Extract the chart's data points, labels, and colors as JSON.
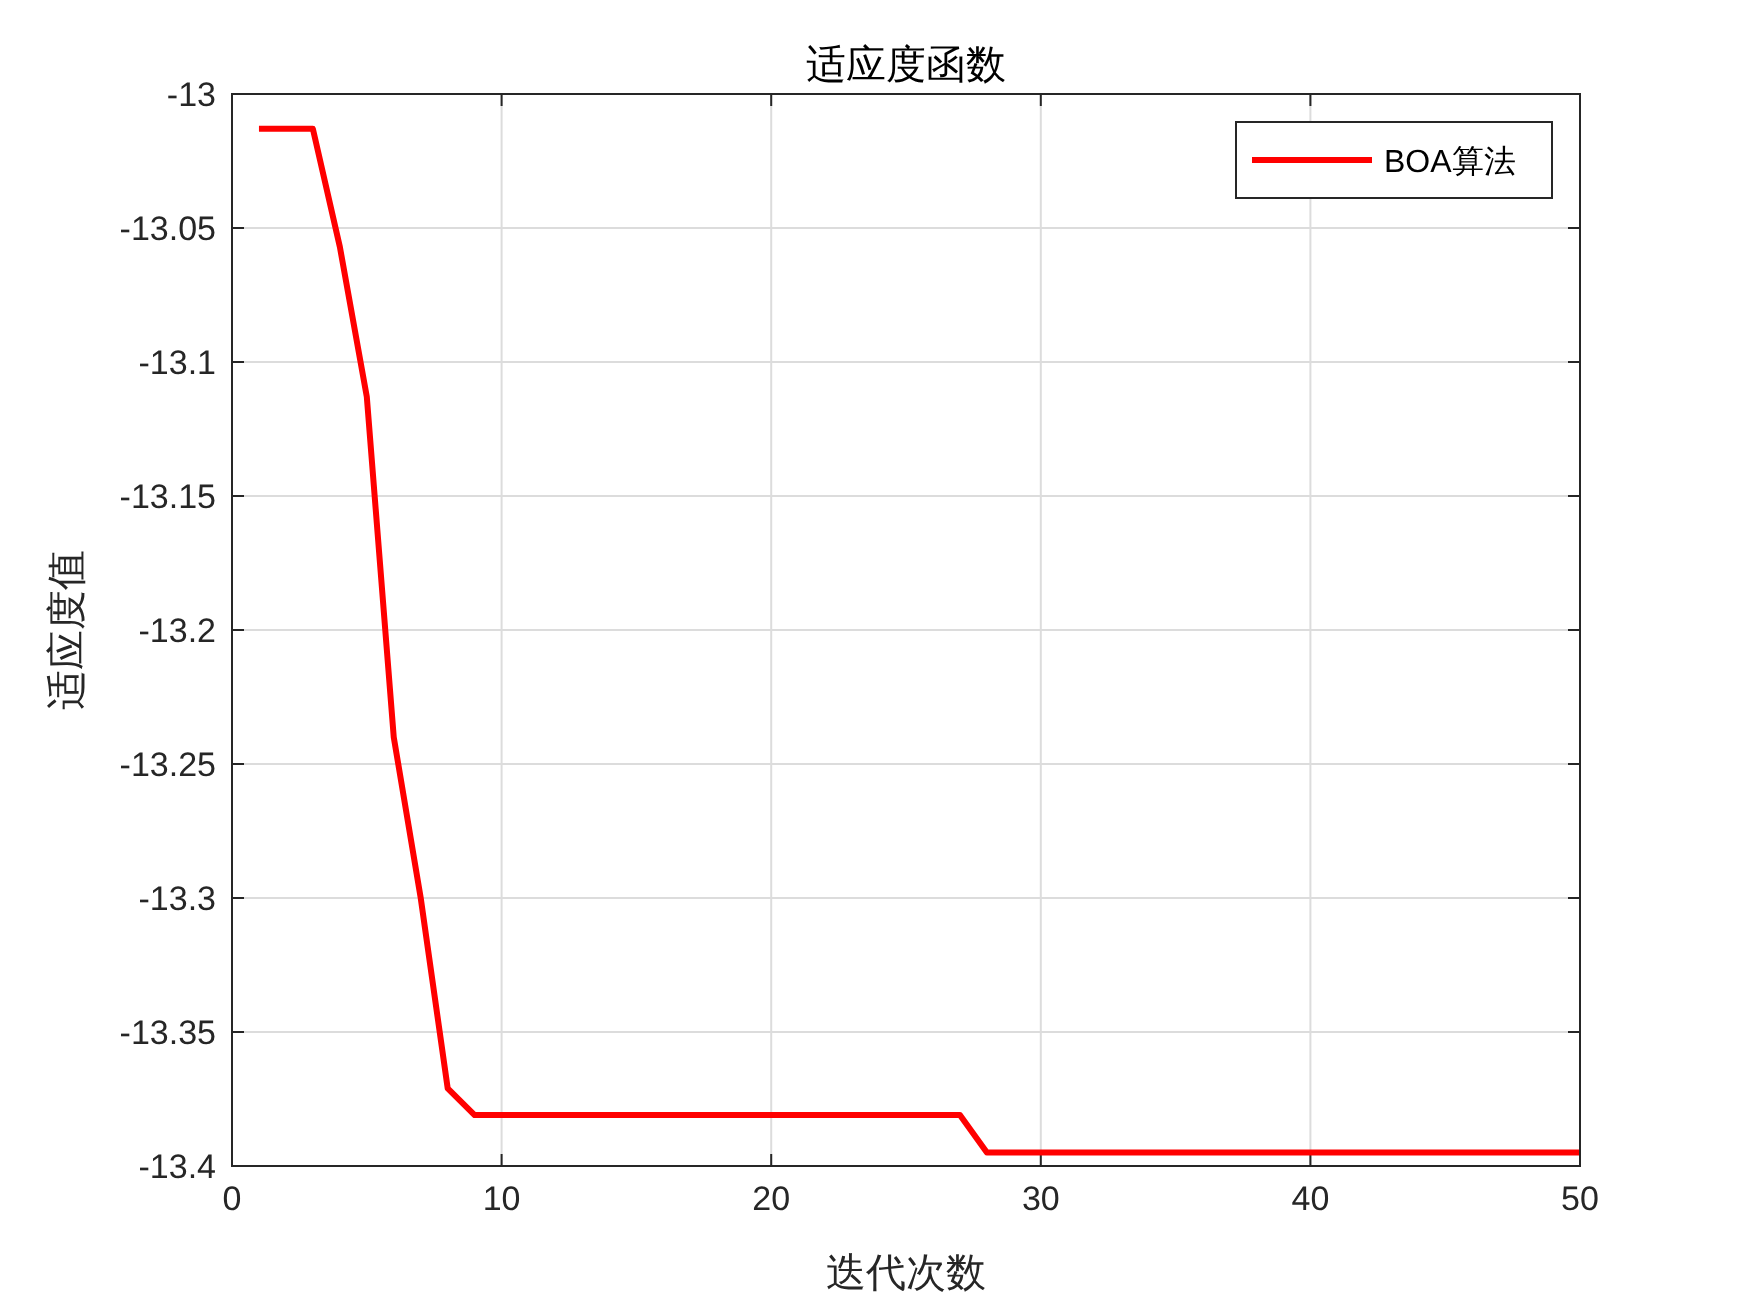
{
  "chart_data": {
    "type": "line",
    "title": "适应度函数",
    "xlabel": "迭代次数",
    "ylabel": "适应度值",
    "x": [
      1,
      3,
      4,
      5,
      6,
      7,
      8,
      9,
      27,
      28,
      50
    ],
    "series": [
      {
        "name": "BOA算法",
        "color": "#ff0000",
        "values": [
          -13.013,
          -13.013,
          -13.057,
          -13.113,
          -13.24,
          -13.3,
          -13.371,
          -13.381,
          -13.381,
          -13.395,
          -13.395
        ]
      }
    ],
    "xlim": [
      0,
      50
    ],
    "xticks": [
      0,
      10,
      20,
      30,
      40,
      50
    ],
    "ylim": [
      -13.4,
      -13
    ],
    "yticks": [
      -13.4,
      -13.35,
      -13.3,
      -13.25,
      -13.2,
      -13.15,
      -13.1,
      -13.05,
      -13
    ],
    "grid": true,
    "legend": "top right",
    "marker": "none",
    "line_style": "solid"
  }
}
